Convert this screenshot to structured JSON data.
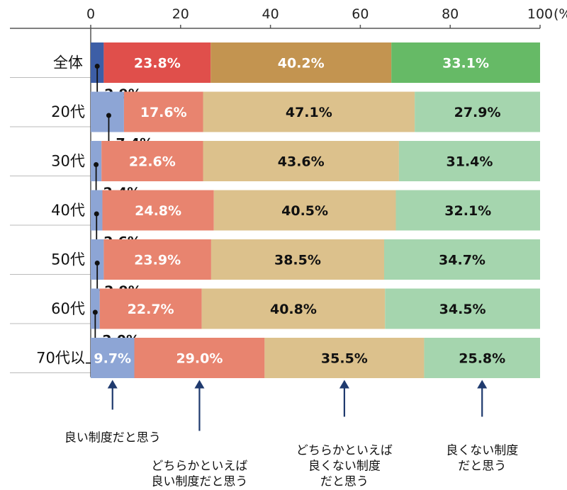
{
  "chart_data": {
    "type": "bar",
    "orientation": "horizontal",
    "stacked": true,
    "categories": [
      "全体",
      "20代",
      "30代",
      "40代",
      "50代",
      "60代",
      "70代以上"
    ],
    "series": [
      {
        "name": "良い制度だと思う",
        "values": [
          2.9,
          7.4,
          2.4,
          2.6,
          2.9,
          2.0,
          9.7
        ],
        "labels": [
          "2.9%",
          "7.4%",
          "2.4%",
          "2.6%",
          "2.9%",
          "2.0%",
          "9.7%"
        ]
      },
      {
        "name": "どちらかといえば良い制度だと思う",
        "values": [
          23.8,
          17.6,
          22.6,
          24.8,
          23.9,
          22.7,
          29.0
        ],
        "labels": [
          "23.8%",
          "17.6%",
          "22.6%",
          "24.8%",
          "23.9%",
          "22.7%",
          "29.0%"
        ]
      },
      {
        "name": "どちらかといえば良くない制度だと思う",
        "values": [
          40.2,
          47.1,
          43.6,
          40.5,
          38.5,
          40.8,
          35.5
        ],
        "labels": [
          "40.2%",
          "47.1%",
          "43.6%",
          "40.5%",
          "38.5%",
          "40.8%",
          "35.5%"
        ]
      },
      {
        "name": "良くない制度だと思う",
        "values": [
          33.1,
          27.9,
          31.4,
          32.1,
          34.7,
          34.5,
          25.8
        ],
        "labels": [
          "33.1%",
          "27.9%",
          "31.4%",
          "32.1%",
          "34.7%",
          "34.5%",
          "25.8%"
        ]
      }
    ],
    "xticks": [
      "0",
      "20",
      "40",
      "60",
      "80",
      "100"
    ],
    "xunit": "(%)",
    "xlim": [
      0,
      100
    ],
    "legend": {
      "position": "bottom",
      "lines": [
        [
          "良い制度だと思う"
        ],
        [
          "どちらかといえば",
          "良い制度だと思う"
        ],
        [
          "どちらかといえば",
          "良くない制度",
          "だと思う"
        ],
        [
          "良くない制度",
          "だと思う"
        ]
      ]
    },
    "colors": {
      "total": [
        "#3d5ea6",
        "#e04f4b",
        "#c39450",
        "#66ba66"
      ],
      "age": [
        "#8da5d5",
        "#e8846f",
        "#dcc18c",
        "#a5d5ae"
      ],
      "arrow": "#1f3a6e"
    }
  }
}
